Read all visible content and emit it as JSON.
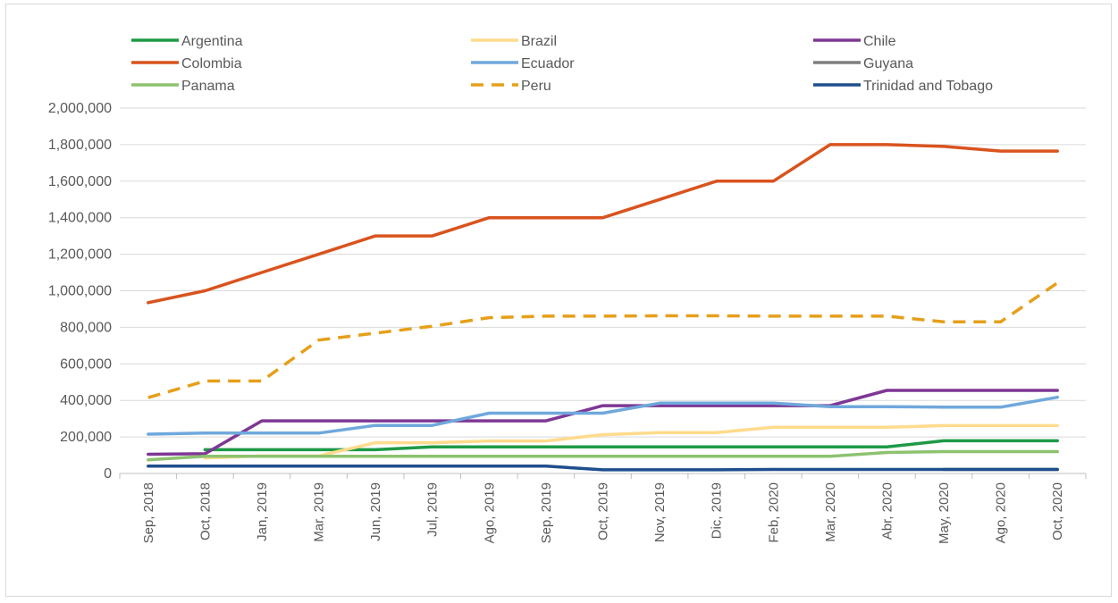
{
  "chart_data": {
    "type": "line",
    "title": "",
    "xlabel": "",
    "ylabel": "",
    "ylim": [
      0,
      2000000
    ],
    "yticks": [
      0,
      200000,
      400000,
      600000,
      800000,
      1000000,
      1200000,
      1400000,
      1600000,
      1800000,
      2000000
    ],
    "ytick_labels": [
      "0",
      "200,000",
      "400,000",
      "600,000",
      "800,000",
      "1,000,000",
      "1,200,000",
      "1,400,000",
      "1,600,000",
      "1,800,000",
      "2,000,000"
    ],
    "grid": true,
    "legend_position": "top",
    "categories": [
      "Sep, 2018",
      "Oct, 2018",
      "Jan, 2019",
      "Mar, 2019",
      "Jun, 2019",
      "Jul, 2019",
      "Ago, 2019",
      "Sep, 2019",
      "Oct, 2019",
      "Nov, 2019",
      "Dic, 2019",
      "Feb, 2020",
      "Mar, 2020",
      "Abr, 2020",
      "May, 2020",
      "Ago, 2020",
      "Oct, 2020"
    ],
    "series": [
      {
        "name": "Argentina",
        "color": "#1e9a47",
        "dash": false,
        "values": [
          null,
          130000,
          130000,
          130000,
          130000,
          145000,
          145000,
          145000,
          145000,
          145000,
          145000,
          145000,
          145000,
          145000,
          179000,
          179000,
          179000
        ]
      },
      {
        "name": "Brazil",
        "color": "#ffdb8c",
        "dash": false,
        "values": [
          null,
          85000,
          96000,
          96000,
          168000,
          168000,
          178000,
          178000,
          212000,
          224000,
          224000,
          253000,
          253000,
          253000,
          262000,
          262000,
          262000
        ]
      },
      {
        "name": "Chile",
        "color": "#7e3794",
        "dash": false,
        "values": [
          105000,
          108000,
          288000,
          288000,
          288000,
          288000,
          288000,
          288000,
          371000,
          371000,
          371000,
          371000,
          371000,
          455000,
          455000,
          455000,
          455000
        ]
      },
      {
        "name": "Colombia",
        "color": "#d9531e",
        "dash": false,
        "values": [
          935000,
          1000000,
          1100000,
          1200000,
          1300000,
          1300000,
          1400000,
          1400000,
          1400000,
          1500000,
          1600000,
          1600000,
          1800000,
          1800000,
          1790000,
          1765000,
          1765000
        ]
      },
      {
        "name": "Ecuador",
        "color": "#6fa8dc",
        "dash": false,
        "values": [
          215000,
          221000,
          221000,
          221000,
          263000,
          263000,
          330000,
          330000,
          330000,
          385000,
          385000,
          385000,
          366000,
          366000,
          363000,
          363000,
          417000
        ]
      },
      {
        "name": "Guyana",
        "color": "#7f7f7f",
        "dash": false,
        "values": [
          null,
          null,
          null,
          null,
          null,
          null,
          null,
          null,
          null,
          null,
          null,
          null,
          null,
          null,
          22000,
          22000,
          22000
        ]
      },
      {
        "name": "Panama",
        "color": "#8dc26f",
        "dash": false,
        "values": [
          75000,
          94000,
          94000,
          94000,
          94000,
          94000,
          94000,
          94000,
          94000,
          94000,
          94000,
          94000,
          94000,
          115000,
          120000,
          120000,
          120000
        ]
      },
      {
        "name": "Peru",
        "color": "#e69f1a",
        "dash": true,
        "values": [
          415000,
          506000,
          506000,
          730000,
          768000,
          806000,
          853000,
          861000,
          861000,
          863000,
          863000,
          861000,
          861000,
          861000,
          830000,
          830000,
          1043000
        ]
      },
      {
        "name": "Trinidad and Tobago",
        "color": "#1f4e8c",
        "dash": false,
        "values": [
          40000,
          40000,
          40000,
          40000,
          40000,
          40000,
          40000,
          40000,
          20000,
          20000,
          20000,
          22000,
          22000,
          22000,
          22000,
          22000,
          22000
        ]
      }
    ]
  }
}
